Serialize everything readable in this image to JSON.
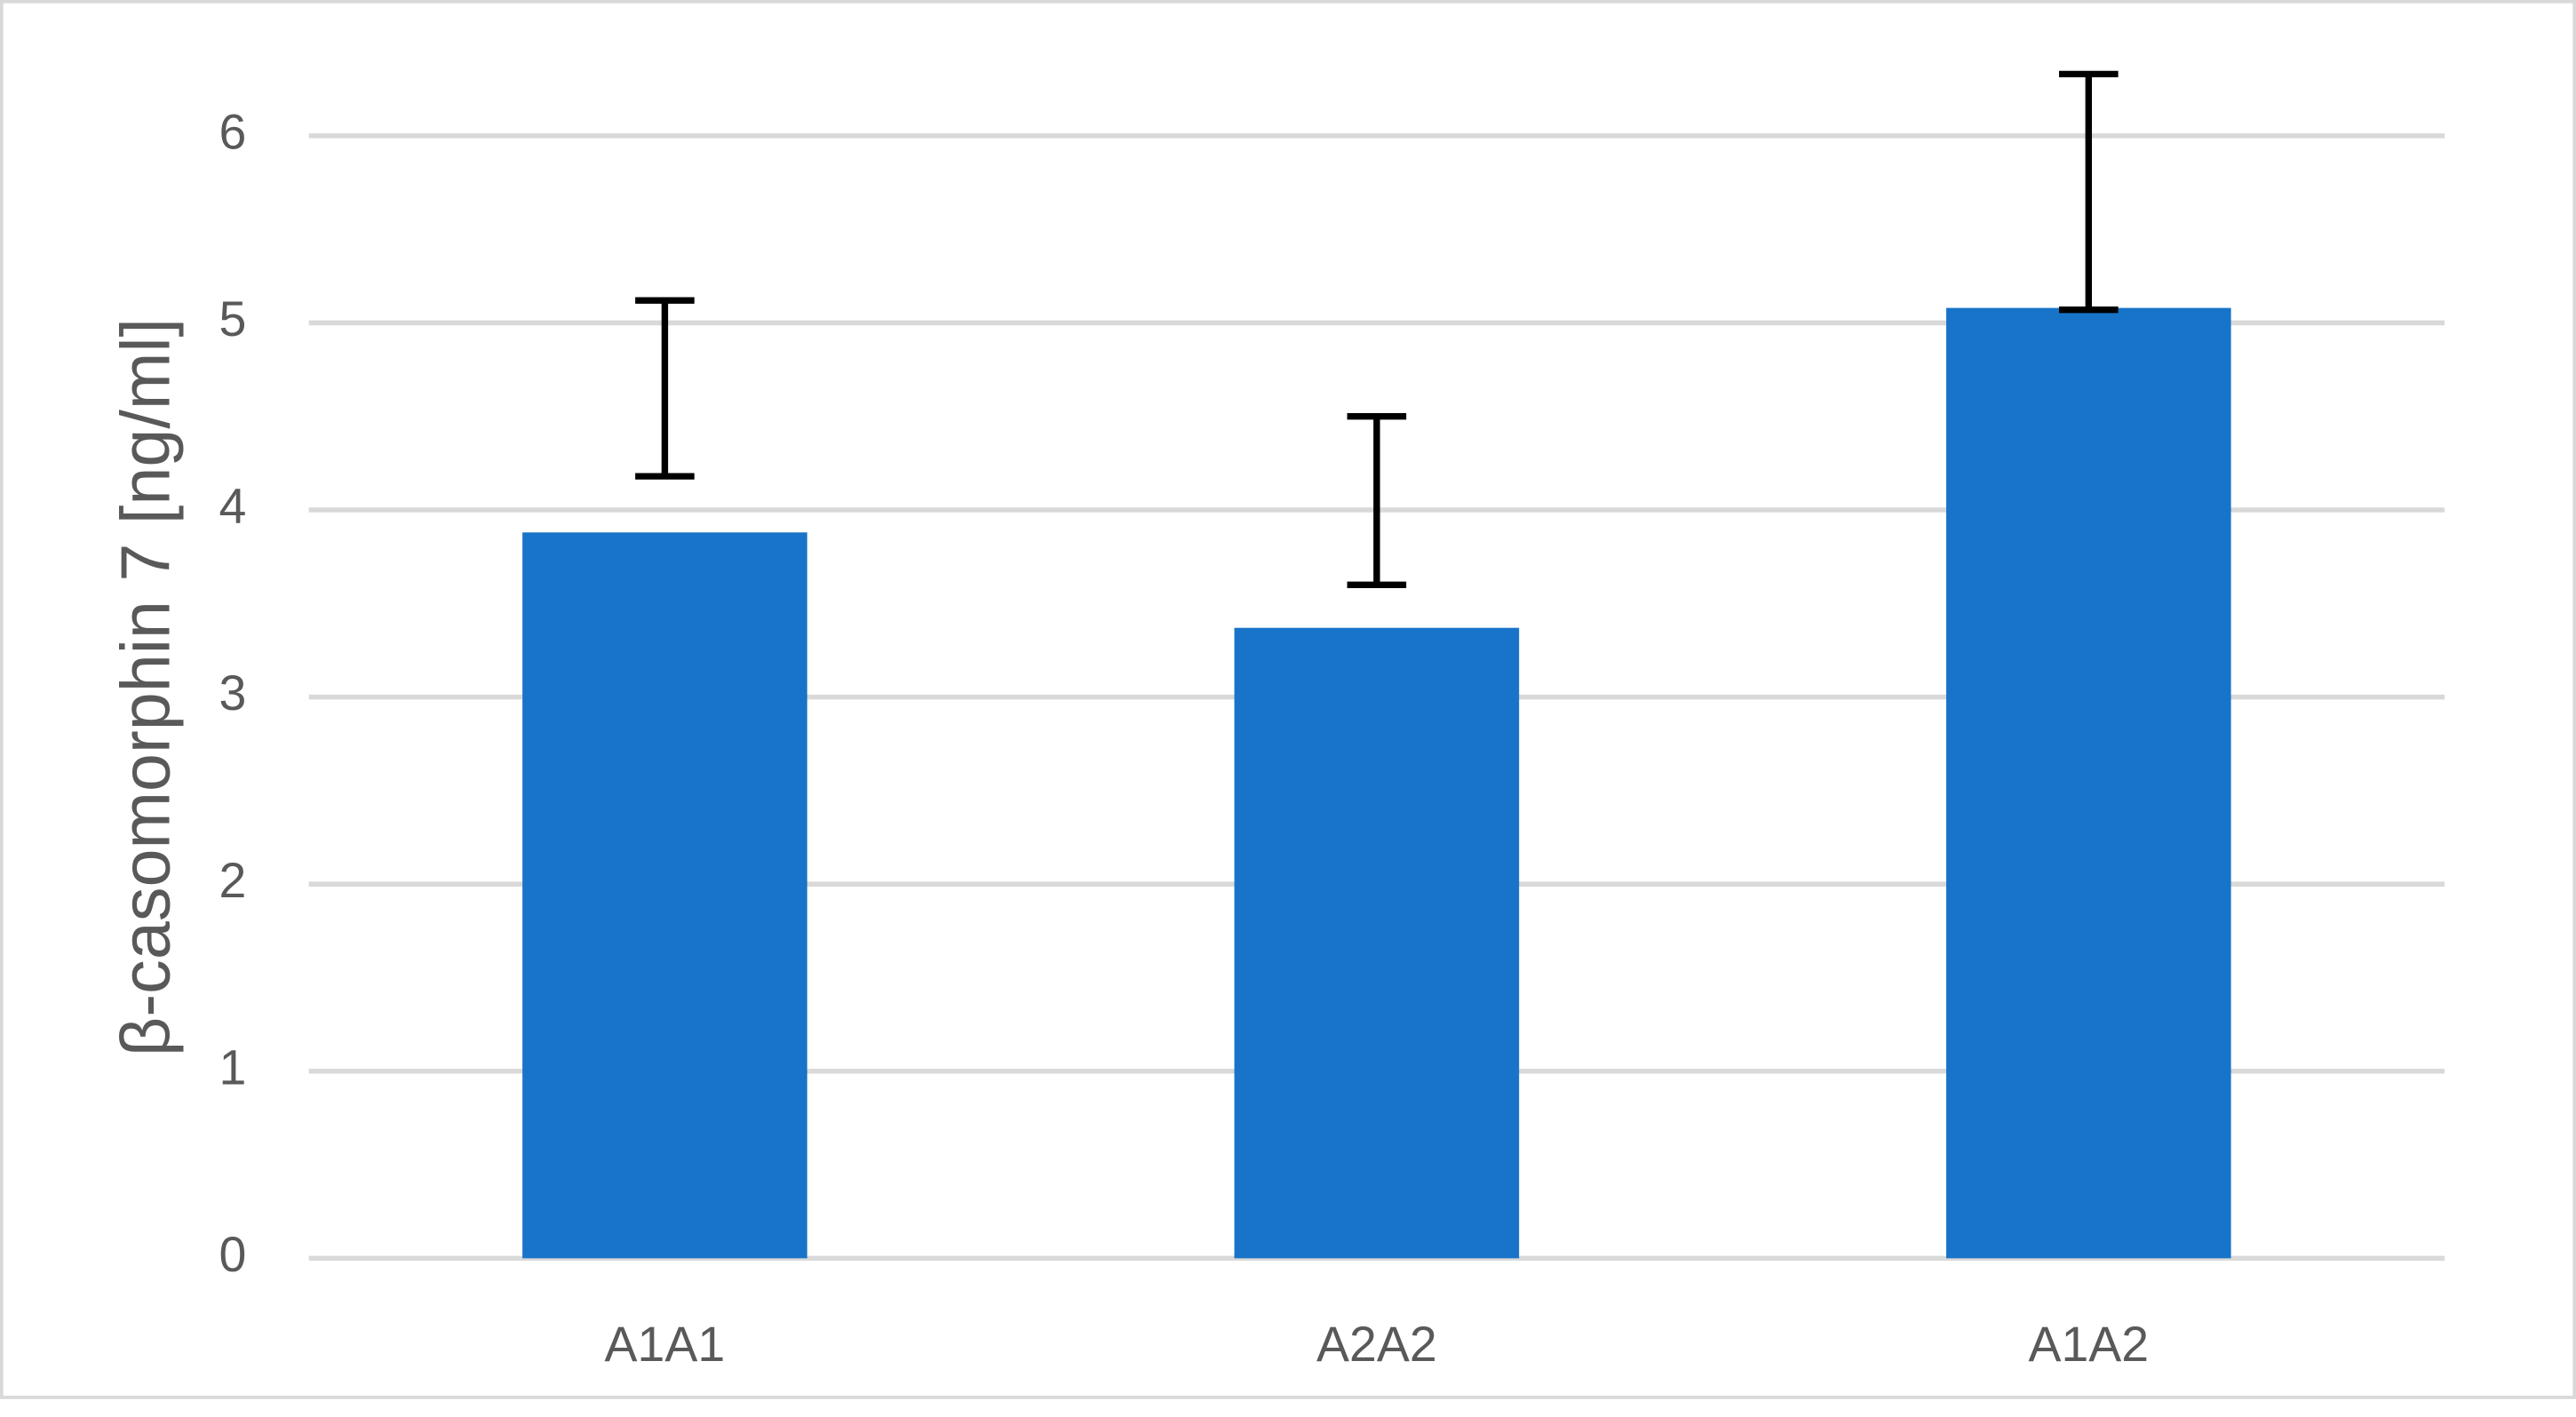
{
  "chart_data": {
    "type": "bar",
    "y_label": "β-casomorphin 7 [ng/ml]",
    "categories": [
      "A1A1",
      "A2A2",
      "A1A2"
    ],
    "values": [
      3.88,
      3.37,
      5.08
    ],
    "error_low": [
      4.18,
      3.6,
      5.07
    ],
    "error_high": [
      5.12,
      4.5,
      6.33
    ],
    "color": "#1874c8",
    "ylim": [
      0,
      6
    ],
    "yticks": [
      0,
      1,
      2,
      3,
      4,
      5,
      6
    ],
    "grid": true
  }
}
